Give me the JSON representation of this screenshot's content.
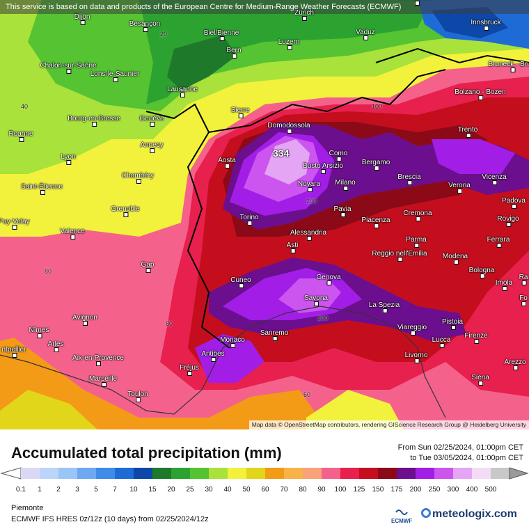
{
  "banner": "This service is based on data and products of the European Centre for Medium-Range Weather Forecasts (ECMWF)",
  "attribution": "Map data © OpenStreetMap contributors, rendering GIScience Research Group @ Heidelberg University",
  "max_value": "334",
  "title": "Accumulated total precipitation (mm)",
  "period_from": "From Sun 02/25/2024, 01:00pm CET",
  "period_to": "to Tue 03/05/2024, 01:00pm CET",
  "region": "Piemonte",
  "model": "ECMWF IFS HRES 0z/12z (10 days) from  02/25/2024/12z",
  "ecmwf_label": "ECMWF",
  "brand": "meteologix.com",
  "legend": [
    {
      "label": "0.1",
      "color": "#d9d9f5"
    },
    {
      "label": "1",
      "color": "#bcd4f9"
    },
    {
      "label": "2",
      "color": "#9cc5f7"
    },
    {
      "label": "3",
      "color": "#6fa8f2"
    },
    {
      "label": "5",
      "color": "#3f8be8"
    },
    {
      "label": "7",
      "color": "#1f6bd6"
    },
    {
      "label": "10",
      "color": "#0d47a8"
    },
    {
      "label": "15",
      "color": "#1e7a2a"
    },
    {
      "label": "20",
      "color": "#2ca331"
    },
    {
      "label": "25",
      "color": "#55c332"
    },
    {
      "label": "30",
      "color": "#a8e23a"
    },
    {
      "label": "40",
      "color": "#f2f23c"
    },
    {
      "label": "50",
      "color": "#e2d61a"
    },
    {
      "label": "60",
      "color": "#f39a17"
    },
    {
      "label": "70",
      "color": "#f7b347"
    },
    {
      "label": "80",
      "color": "#f9a27a"
    },
    {
      "label": "90",
      "color": "#f4628c"
    },
    {
      "label": "100",
      "color": "#e8204e"
    },
    {
      "label": "125",
      "color": "#c40e1e"
    },
    {
      "label": "150",
      "color": "#8c0a18"
    },
    {
      "label": "175",
      "color": "#6c0f8e"
    },
    {
      "label": "200",
      "color": "#a21ee6"
    },
    {
      "label": "250",
      "color": "#cc55f0"
    },
    {
      "label": "300",
      "color": "#e4a6f4"
    },
    {
      "label": "400",
      "color": "#f4dcf7"
    },
    {
      "label": "500",
      "color": "#c8c8c8"
    }
  ],
  "cities": [
    {
      "name": "Dijon"
    },
    {
      "name": "Besançon"
    },
    {
      "name": "Zürich"
    },
    {
      "name": "Vaduz"
    },
    {
      "name": "Innsbruck"
    },
    {
      "name": "Biel/Bienne"
    },
    {
      "name": "Bern"
    },
    {
      "name": "Luzern"
    },
    {
      "name": "Chalon-sur-Saône"
    },
    {
      "name": "Lons-le-Saunier"
    },
    {
      "name": "Bruneck - Bruni"
    },
    {
      "name": "Lausanne"
    },
    {
      "name": "Bolzano - Bozen"
    },
    {
      "name": "Bourg-en-Bresse"
    },
    {
      "name": "Genève"
    },
    {
      "name": "Sierre"
    },
    {
      "name": "Domodossola"
    },
    {
      "name": "Trento"
    },
    {
      "name": "Roanne"
    },
    {
      "name": "Annecy"
    },
    {
      "name": "Como"
    },
    {
      "name": "Lyon"
    },
    {
      "name": "Aosta"
    },
    {
      "name": "Busto Arsizio"
    },
    {
      "name": "Bergamo"
    },
    {
      "name": "Vicenza"
    },
    {
      "name": "Chambéry"
    },
    {
      "name": "Saint-Étienne"
    },
    {
      "name": "Novara"
    },
    {
      "name": "Milano"
    },
    {
      "name": "Brescia"
    },
    {
      "name": "Verona"
    },
    {
      "name": "Padova"
    },
    {
      "name": "Grenoble"
    },
    {
      "name": "Pavia"
    },
    {
      "name": "Puy-Velay"
    },
    {
      "name": "Torino"
    },
    {
      "name": "Piacenza"
    },
    {
      "name": "Cremona"
    },
    {
      "name": "Rovigo"
    },
    {
      "name": "Valence"
    },
    {
      "name": "Alessandria"
    },
    {
      "name": "Parma"
    },
    {
      "name": "Ferrara"
    },
    {
      "name": "Asti"
    },
    {
      "name": "Reggio nell'Emilia"
    },
    {
      "name": "Modena"
    },
    {
      "name": "Gap"
    },
    {
      "name": "Bologna"
    },
    {
      "name": "Genova"
    },
    {
      "name": "Cuneo"
    },
    {
      "name": "Imola"
    },
    {
      "name": "Savona"
    },
    {
      "name": "La Spezia"
    },
    {
      "name": "Avignon"
    },
    {
      "name": "Pistoia"
    },
    {
      "name": "Viareggio"
    },
    {
      "name": "Nîmes"
    },
    {
      "name": "Sanremo"
    },
    {
      "name": "Lucca"
    },
    {
      "name": "Firenze"
    },
    {
      "name": "Monaco"
    },
    {
      "name": "Arles"
    },
    {
      "name": "ntpellier"
    },
    {
      "name": "Antibes"
    },
    {
      "name": "Livorno"
    },
    {
      "name": "Aix-en-Provence"
    },
    {
      "name": "Arezzo"
    },
    {
      "name": "Fréjus"
    },
    {
      "name": "Marseille"
    },
    {
      "name": "Siena"
    },
    {
      "name": "Toulon"
    },
    {
      "name": "Fo"
    },
    {
      "name": "Ra"
    },
    {
      "name": "Kontnoren"
    }
  ],
  "contour_labels": [
    "20",
    "40",
    "60",
    "80",
    "100",
    "200"
  ]
}
